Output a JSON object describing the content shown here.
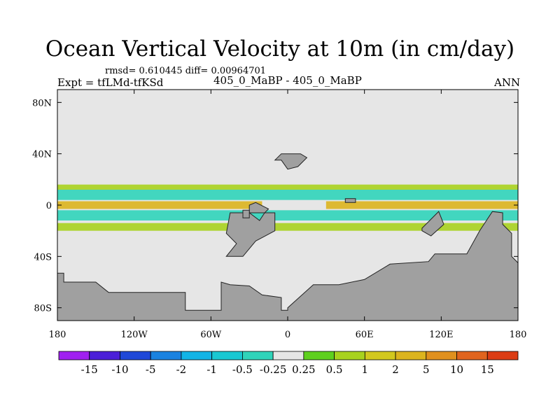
{
  "header": {
    "title": "Ocean Vertical Velocity at 10m (in cm/day)",
    "stats": "rmsd= 0.610445 diff= 0.00964701",
    "experiment": "Expt = tfLMd-tfKSd",
    "cases": "405_0_MaBP - 405_0_MaBP",
    "season": "ANN"
  },
  "chart_data": {
    "type": "heatmap",
    "title": "Ocean Vertical Velocity at 10m (in cm/day)",
    "xlabel": "",
    "ylabel": "",
    "xlim": [
      -180,
      180
    ],
    "ylim": [
      -90,
      90
    ],
    "x_ticks": [
      {
        "value": -180,
        "label": "180"
      },
      {
        "value": -120,
        "label": "120W"
      },
      {
        "value": -60,
        "label": "60W"
      },
      {
        "value": 0,
        "label": "0"
      },
      {
        "value": 60,
        "label": "60E"
      },
      {
        "value": 120,
        "label": "120E"
      },
      {
        "value": 180,
        "label": "180"
      }
    ],
    "y_ticks": [
      {
        "value": -80,
        "label": "80S"
      },
      {
        "value": -40,
        "label": "40S"
      },
      {
        "value": 0,
        "label": "0"
      },
      {
        "value": 40,
        "label": "40N"
      },
      {
        "value": 80,
        "label": "80N"
      }
    ],
    "background_color": "#e6e6e6",
    "land_color": "#a0a0a0",
    "colorbar": {
      "labels": [
        "-15",
        "-10",
        "-5",
        "-2",
        "-1",
        "-0.5",
        "-0.25",
        "0.25",
        "0.5",
        "1",
        "2",
        "5",
        "10",
        "15"
      ],
      "colors": [
        "#a020f0",
        "#4b1fd8",
        "#1f48d8",
        "#1a82e0",
        "#12b4e6",
        "#19c8d2",
        "#30d4ba",
        "#e6e6e6",
        "#5ed01e",
        "#a8d21e",
        "#d2c81e",
        "#dcb41e",
        "#e0901e",
        "#e0641e",
        "#dc3c14"
      ]
    },
    "features": [
      {
        "type": "band",
        "name": "equatorial-upwelling-pacific",
        "lon": [
          -180,
          -20
        ],
        "lat": [
          -3,
          3
        ],
        "value": 2
      },
      {
        "type": "band",
        "name": "equatorial-upwelling-indian",
        "lon": [
          30,
          180
        ],
        "lat": [
          -3,
          3
        ],
        "value": 2
      },
      {
        "type": "band",
        "name": "off-equator-downwelling-north",
        "lon": [
          -180,
          180
        ],
        "lat": [
          4,
          12
        ],
        "value": -0.5
      },
      {
        "type": "band",
        "name": "off-equator-downwelling-south",
        "lon": [
          -180,
          180
        ],
        "lat": [
          -12,
          -4
        ],
        "value": -0.5
      },
      {
        "type": "band",
        "name": "itcz-upwelling-north",
        "lon": [
          -180,
          180
        ],
        "lat": [
          12,
          16
        ],
        "value": 0.5
      },
      {
        "type": "band",
        "name": "southern-upwelling",
        "lon": [
          -180,
          180
        ],
        "lat": [
          -20,
          -14
        ],
        "value": 0.5
      }
    ]
  }
}
